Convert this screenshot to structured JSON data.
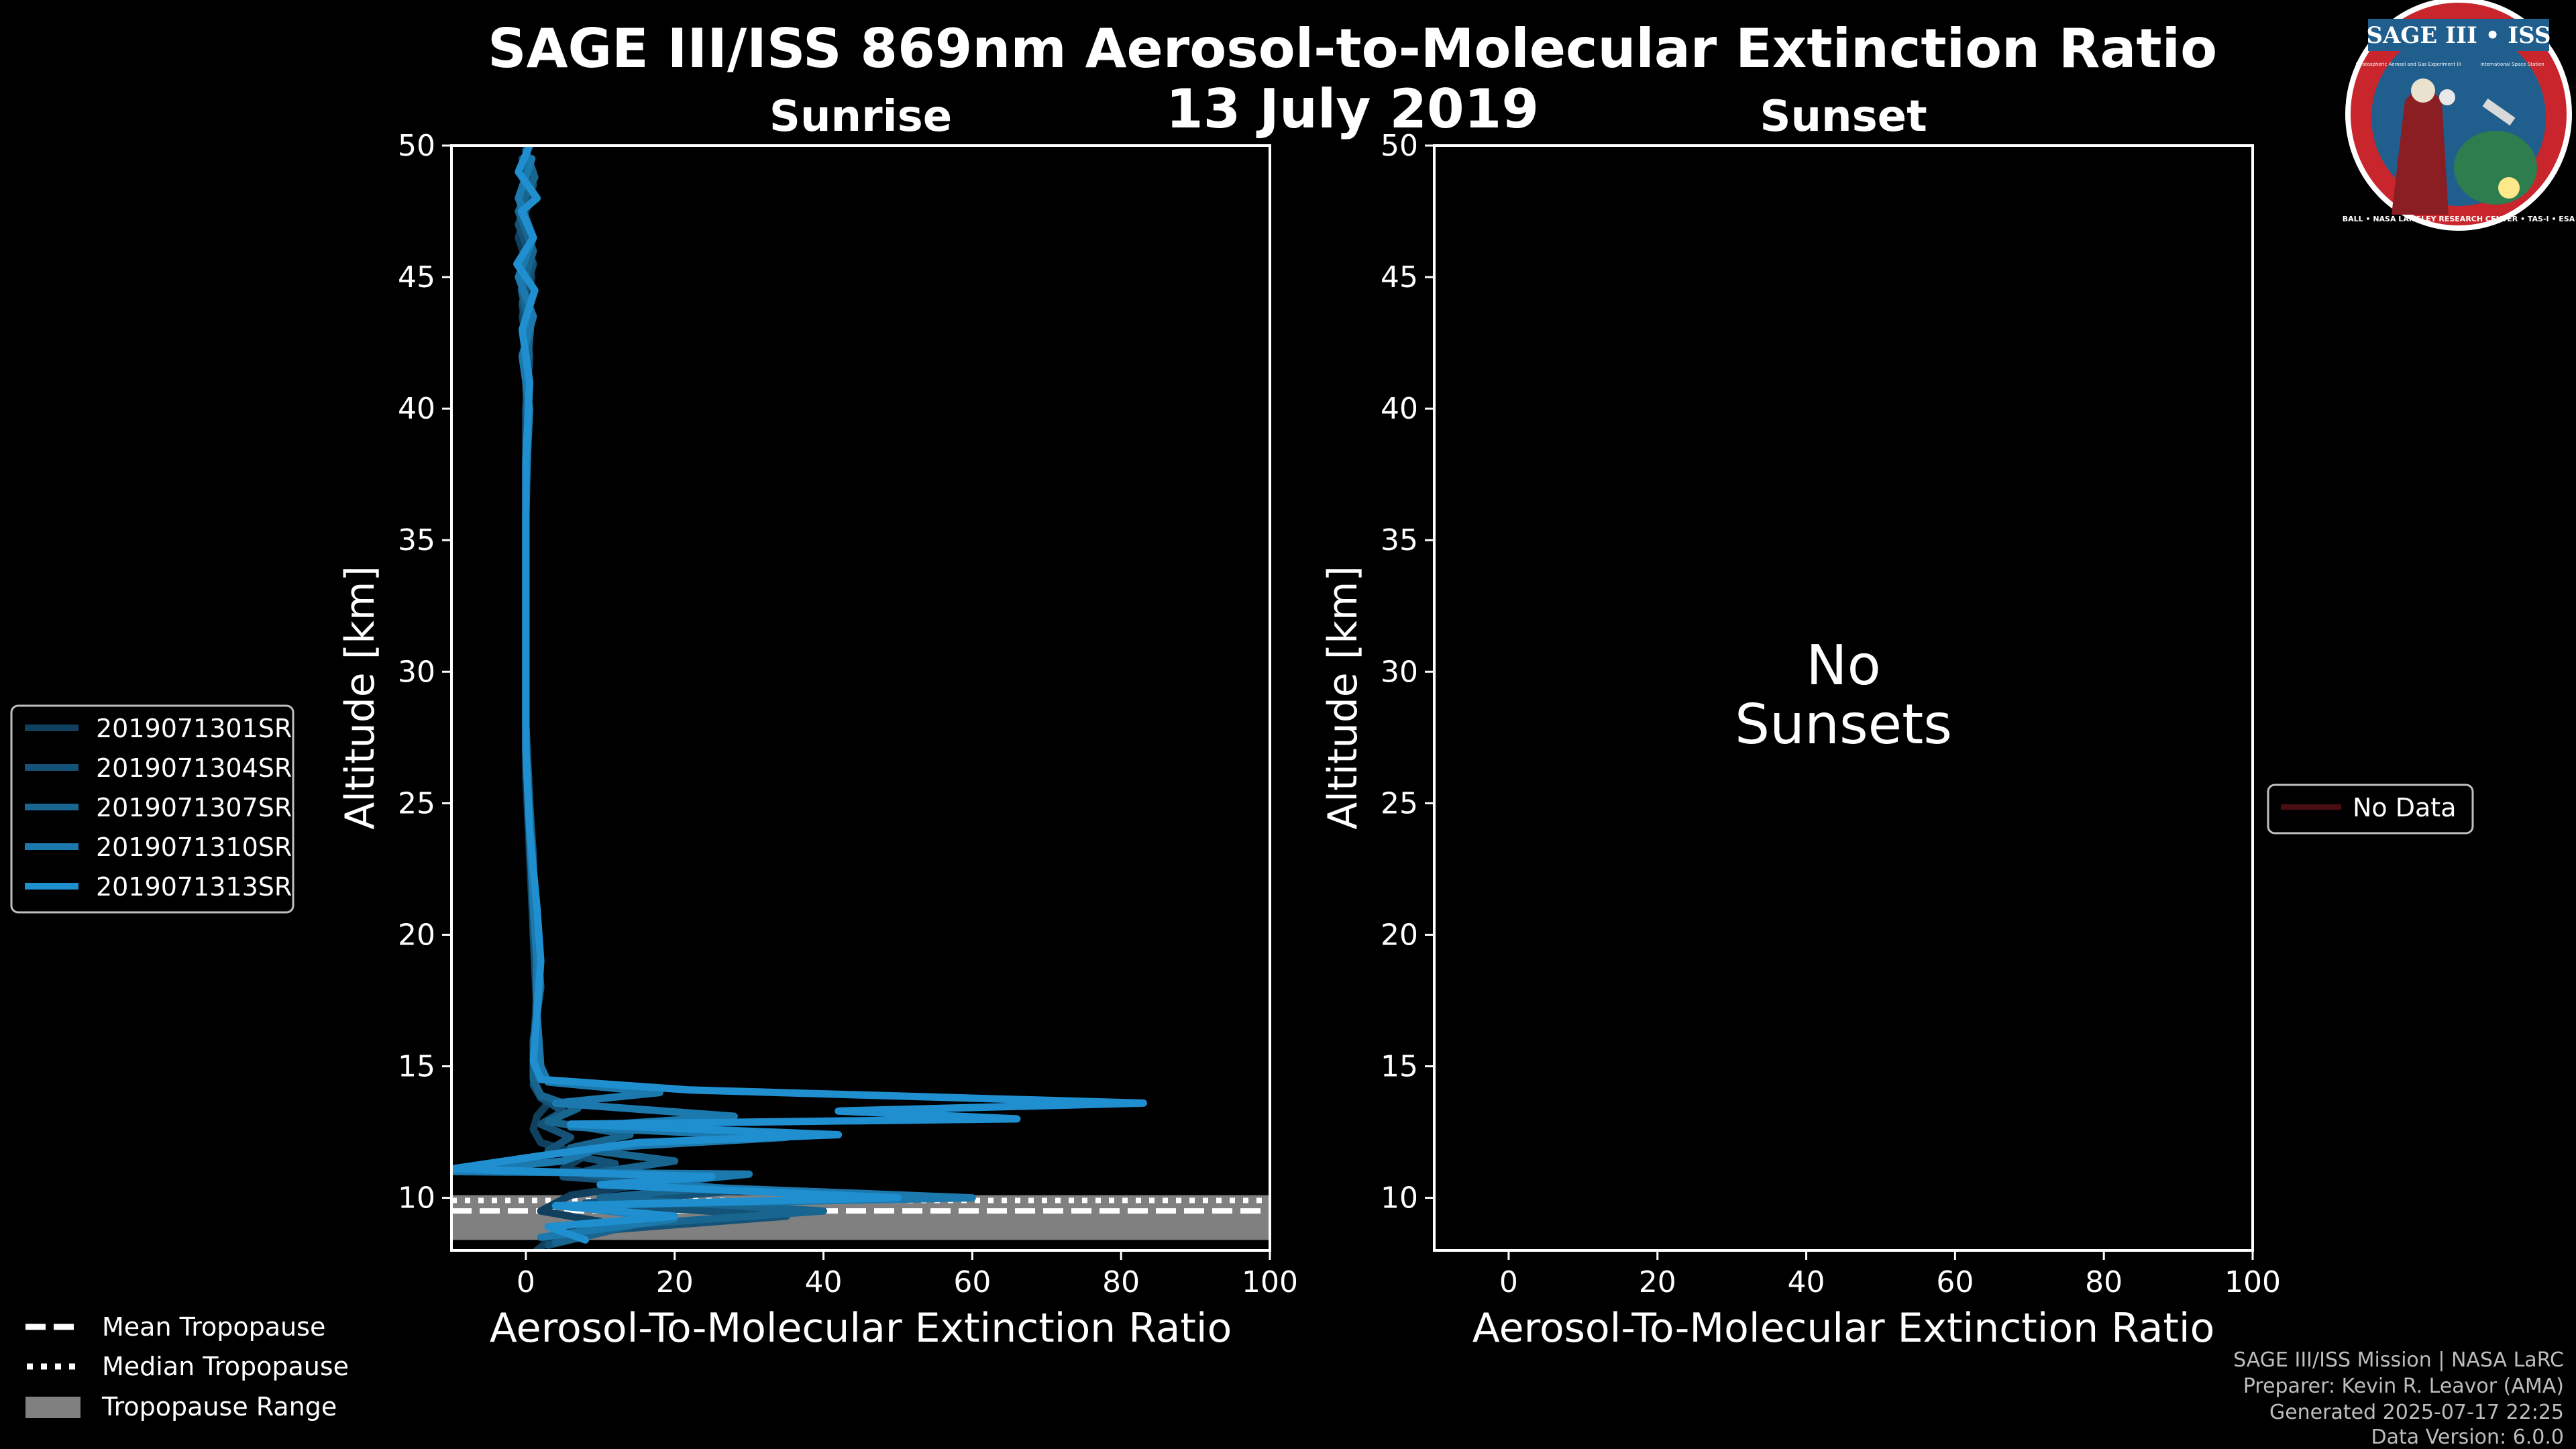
{
  "title": "SAGE III/ISS 869nm Aerosol-to-Molecular Extinction Ratio",
  "date": "13 July 2019",
  "logo": {
    "text": "SAGE III • ISS",
    "small_text": "Stratospheric Aerosol and Gas Experiment III",
    "side_text": "International Space Station",
    "ring_text": "BALL • NASA LANGLEY RESEARCH CENTER • TAS-I • ESA",
    "colors": {
      "ring": "#c8262c",
      "field": "#1f5e8d",
      "border": "#ffffff"
    }
  },
  "legend_left": {
    "items": [
      {
        "label": "2019071301SR",
        "color": "#10405e"
      },
      {
        "label": "2019071304SR",
        "color": "#145277"
      },
      {
        "label": "2019071307SR",
        "color": "#18658f"
      },
      {
        "label": "2019071310SR",
        "color": "#1c79ad"
      },
      {
        "label": "2019071313SR",
        "color": "#1f8fd0"
      }
    ]
  },
  "legend_right": {
    "label": "No Data",
    "color": "#4a0e12"
  },
  "tropo_legend": {
    "mean": "Mean Tropopause",
    "median": "Median Tropopause",
    "range": "Tropopause Range"
  },
  "no_data_message": [
    "No",
    "Sunsets"
  ],
  "credits": [
    "SAGE III/ISS Mission | NASA LaRC",
    "Preparer: Kevin R. Leavor (AMA)",
    "Generated 2025-07-17 22:25",
    "Data Version: 6.0.0"
  ],
  "chart_data": [
    {
      "type": "line",
      "title": "Sunrise",
      "xlabel": "Aerosol-To-Molecular Extinction Ratio",
      "ylabel": "Altitude [km]",
      "xlim": [
        -10,
        100
      ],
      "ylim": [
        8,
        50
      ],
      "xticks": [
        0,
        20,
        40,
        60,
        80,
        100
      ],
      "yticks": [
        10,
        15,
        20,
        25,
        30,
        35,
        40,
        45,
        50
      ],
      "tropopause": {
        "mean": 9.5,
        "median": 9.9,
        "range": [
          8.4,
          10.1
        ]
      },
      "series": [
        {
          "name": "2019071301SR",
          "color": "#10405e",
          "points": [
            [
              1.5,
              8
            ],
            [
              4,
              8.6
            ],
            [
              10,
              9.1
            ],
            [
              2,
              9.5
            ],
            [
              6,
              10.1
            ],
            [
              18,
              10.6
            ],
            [
              5,
              11.1
            ],
            [
              8,
              11.6
            ],
            [
              2,
              12.1
            ],
            [
              1,
              12.6
            ],
            [
              1.5,
              13.1
            ],
            [
              3,
              13.6
            ],
            [
              1.5,
              14.1
            ],
            [
              1,
              14.6
            ],
            [
              1,
              15.5
            ],
            [
              1.5,
              18
            ],
            [
              1,
              20
            ],
            [
              0.5,
              23
            ],
            [
              0,
              26
            ],
            [
              0,
              30
            ],
            [
              0,
              35
            ],
            [
              0,
              38
            ],
            [
              0,
              40
            ],
            [
              0.5,
              42
            ],
            [
              -0.5,
              43.5
            ],
            [
              0.8,
              45
            ],
            [
              -1,
              46.5
            ],
            [
              0.5,
              48
            ],
            [
              0,
              50
            ]
          ]
        },
        {
          "name": "2019071304SR",
          "color": "#145277",
          "points": [
            [
              3,
              8.2
            ],
            [
              12,
              8.8
            ],
            [
              35,
              9.3
            ],
            [
              8,
              9.8
            ],
            [
              30,
              10.3
            ],
            [
              5,
              10.8
            ],
            [
              12,
              11.3
            ],
            [
              3,
              11.8
            ],
            [
              6,
              12.3
            ],
            [
              2,
              12.8
            ],
            [
              5,
              13.3
            ],
            [
              2,
              13.8
            ],
            [
              1,
              14.3
            ],
            [
              1.5,
              15
            ],
            [
              1.5,
              17
            ],
            [
              1,
              20
            ],
            [
              1,
              23
            ],
            [
              0,
              27
            ],
            [
              0,
              31
            ],
            [
              0,
              36
            ],
            [
              0,
              40
            ],
            [
              0.5,
              42
            ],
            [
              -0.5,
              44
            ],
            [
              1,
              45.5
            ],
            [
              -1,
              47
            ],
            [
              1,
              48.5
            ],
            [
              -0.5,
              49.5
            ]
          ]
        },
        {
          "name": "2019071307SR",
          "color": "#18658f",
          "points": [
            [
              4,
              8.3
            ],
            [
              15,
              9.0
            ],
            [
              40,
              9.5
            ],
            [
              10,
              10.0
            ],
            [
              25,
              10.4
            ],
            [
              8,
              10.9
            ],
            [
              20,
              11.4
            ],
            [
              6,
              11.9
            ],
            [
              14,
              12.4
            ],
            [
              3,
              12.9
            ],
            [
              7,
              13.4
            ],
            [
              2,
              13.9
            ],
            [
              1,
              14.5
            ],
            [
              1,
              16
            ],
            [
              2,
              18
            ],
            [
              1.5,
              20
            ],
            [
              1,
              22
            ],
            [
              0.5,
              25
            ],
            [
              0,
              28
            ],
            [
              0,
              32
            ],
            [
              0,
              36
            ],
            [
              0.3,
              39
            ],
            [
              0,
              41
            ],
            [
              0.6,
              43
            ],
            [
              -0.6,
              44.5
            ],
            [
              1,
              46
            ],
            [
              -1,
              47.5
            ],
            [
              1.2,
              48.8
            ],
            [
              0,
              49.8
            ]
          ]
        },
        {
          "name": "2019071310SR",
          "color": "#1c79ad",
          "points": [
            [
              2,
              8.5
            ],
            [
              20,
              9.2
            ],
            [
              5,
              9.7
            ],
            [
              60,
              10.0
            ],
            [
              15,
              10.5
            ],
            [
              30,
              10.9
            ],
            [
              -10,
              11.0
            ],
            [
              5,
              11.4
            ],
            [
              10,
              11.9
            ],
            [
              35,
              12.3
            ],
            [
              6,
              12.7
            ],
            [
              28,
              13.1
            ],
            [
              4,
              13.6
            ],
            [
              18,
              14.0
            ],
            [
              3,
              14.4
            ],
            [
              2,
              15
            ],
            [
              1.5,
              17
            ],
            [
              1.5,
              19
            ],
            [
              1,
              21
            ],
            [
              0.5,
              24
            ],
            [
              0,
              27
            ],
            [
              0,
              31
            ],
            [
              0,
              34
            ],
            [
              0,
              37
            ],
            [
              0.5,
              40
            ],
            [
              -0.5,
              42
            ],
            [
              1,
              43.5
            ],
            [
              -1,
              45
            ],
            [
              1,
              46.5
            ],
            [
              -1,
              48
            ],
            [
              0.8,
              49.5
            ]
          ]
        },
        {
          "name": "2019071313SR",
          "color": "#1f8fd0",
          "points": [
            [
              8,
              8.4
            ],
            [
              3,
              8.9
            ],
            [
              20,
              9.3
            ],
            [
              4,
              9.7
            ],
            [
              50,
              10.0
            ],
            [
              10,
              10.5
            ],
            [
              25,
              10.8
            ],
            [
              -10,
              11.1
            ],
            [
              2,
              11.6
            ],
            [
              15,
              12.1
            ],
            [
              42,
              12.4
            ],
            [
              6,
              12.8
            ],
            [
              66,
              13.0
            ],
            [
              42,
              13.3
            ],
            [
              83,
              13.6
            ],
            [
              22,
              14.1
            ],
            [
              2,
              14.5
            ],
            [
              1,
              15.2
            ],
            [
              1.5,
              17
            ],
            [
              2,
              19
            ],
            [
              1.5,
              21
            ],
            [
              0.5,
              24
            ],
            [
              0,
              27
            ],
            [
              0,
              31
            ],
            [
              0,
              35
            ],
            [
              0,
              38
            ],
            [
              0.5,
              41
            ],
            [
              -0.5,
              43
            ],
            [
              1.2,
              44.5
            ],
            [
              -1.2,
              45.5
            ],
            [
              1,
              46.5
            ],
            [
              -0.6,
              47.5
            ],
            [
              1.5,
              48
            ],
            [
              -1,
              49
            ],
            [
              0.5,
              50
            ]
          ]
        }
      ]
    },
    {
      "type": "line",
      "title": "Sunset",
      "xlabel": "Aerosol-To-Molecular Extinction Ratio",
      "ylabel": "Altitude [km]",
      "xlim": [
        -10,
        100
      ],
      "ylim": [
        8,
        50
      ],
      "xticks": [
        0,
        20,
        40,
        60,
        80,
        100
      ],
      "yticks": [
        10,
        15,
        20,
        25,
        30,
        35,
        40,
        45,
        50
      ],
      "series": []
    }
  ]
}
